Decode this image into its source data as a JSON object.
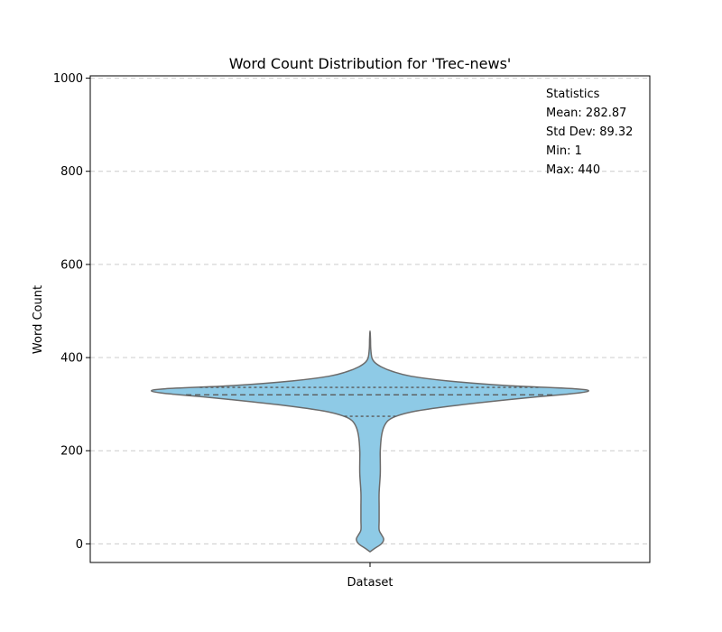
{
  "chart_data": {
    "type": "violin",
    "title": "Word Count Distribution for 'Trec-news'",
    "xlabel": "",
    "ylabel": "Word Count",
    "categories": [
      "Dataset"
    ],
    "ylim": [
      -40,
      1005
    ],
    "yticks": [
      0,
      200,
      400,
      600,
      800,
      1000
    ],
    "grid": "y-dashed",
    "fill_color": "#8ecae6",
    "edge_color": "#6b6b6b",
    "quartiles": {
      "q1": 274,
      "median": 320,
      "q3": 336
    },
    "density": [
      {
        "y": -17,
        "w": 0.0
      },
      {
        "y": -10,
        "w": 0.02
      },
      {
        "y": 0,
        "w": 0.05
      },
      {
        "y": 10,
        "w": 0.06
      },
      {
        "y": 20,
        "w": 0.05
      },
      {
        "y": 30,
        "w": 0.04
      },
      {
        "y": 50,
        "w": 0.04
      },
      {
        "y": 80,
        "w": 0.04
      },
      {
        "y": 110,
        "w": 0.04
      },
      {
        "y": 150,
        "w": 0.045
      },
      {
        "y": 180,
        "w": 0.045
      },
      {
        "y": 200,
        "w": 0.045
      },
      {
        "y": 230,
        "w": 0.05
      },
      {
        "y": 250,
        "w": 0.06
      },
      {
        "y": 265,
        "w": 0.08
      },
      {
        "y": 275,
        "w": 0.12
      },
      {
        "y": 285,
        "w": 0.2
      },
      {
        "y": 295,
        "w": 0.34
      },
      {
        "y": 305,
        "w": 0.52
      },
      {
        "y": 315,
        "w": 0.72
      },
      {
        "y": 322,
        "w": 0.88
      },
      {
        "y": 328,
        "w": 0.96
      },
      {
        "y": 333,
        "w": 0.9
      },
      {
        "y": 340,
        "w": 0.6
      },
      {
        "y": 350,
        "w": 0.34
      },
      {
        "y": 360,
        "w": 0.18
      },
      {
        "y": 370,
        "w": 0.1
      },
      {
        "y": 380,
        "w": 0.05
      },
      {
        "y": 390,
        "w": 0.02
      },
      {
        "y": 400,
        "w": 0.008
      },
      {
        "y": 420,
        "w": 0.003
      },
      {
        "y": 440,
        "w": 0.002
      },
      {
        "y": 457,
        "w": 0.0
      }
    ]
  },
  "stats_box": {
    "heading": "Statistics",
    "mean": "Mean: 282.87",
    "std": "Std Dev: 89.32",
    "min": "Min: 1",
    "max": "Max: 440"
  }
}
